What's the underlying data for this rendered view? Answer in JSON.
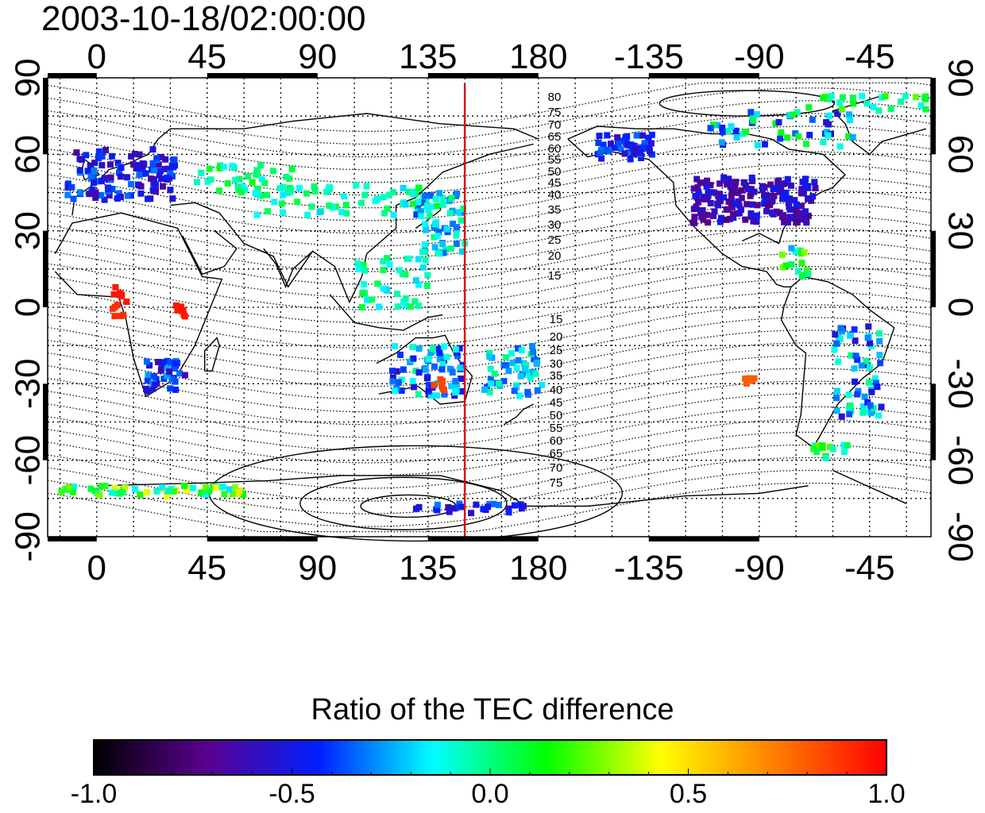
{
  "title": "2003-10-18/02:00:00",
  "map": {
    "top_lon_labels": [
      "0",
      "45",
      "90",
      "135",
      "180",
      "-135",
      "-90",
      "-45"
    ],
    "bottom_lon_labels": [
      "0",
      "45",
      "90",
      "135",
      "180",
      "-135",
      "-90",
      "-45"
    ],
    "left_lat_labels": [
      "90",
      "60",
      "30",
      "0",
      "-30",
      "-60",
      "-90"
    ],
    "right_lat_labels": [
      "90",
      "60",
      "30",
      "0",
      "-30",
      "-60",
      "-90"
    ],
    "marker_longitude": 150,
    "marker_color": "#e00000",
    "contour_labels_north": [
      "80",
      "75",
      "70",
      "65",
      "60",
      "55",
      "50",
      "45",
      "40",
      "35",
      "30",
      "25",
      "20",
      "15"
    ],
    "contour_labels_south": [
      "15",
      "20",
      "25",
      "30",
      "35",
      "40",
      "45",
      "50",
      "55",
      "60",
      "65",
      "70",
      "75"
    ]
  },
  "colorbar": {
    "title": "Ratio of the TEC difference",
    "tick_labels": [
      "-1.0",
      "-0.5",
      "0.0",
      "0.5",
      "1.0"
    ],
    "range": [
      -1.0,
      1.0
    ],
    "colors": [
      "#000000",
      "#5a0090",
      "#0020ff",
      "#00ffff",
      "#00ff00",
      "#ffff00",
      "#ff8000",
      "#ff0000"
    ]
  }
}
